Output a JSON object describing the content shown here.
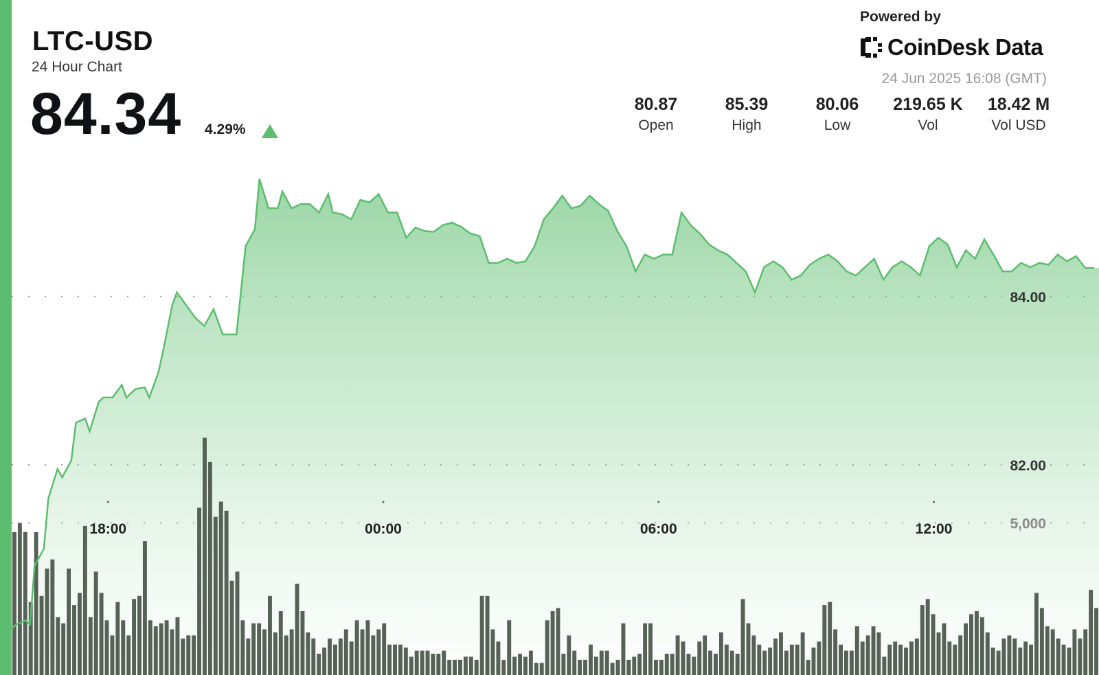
{
  "header": {
    "symbol": "LTC-USD",
    "subtitle": "24 Hour Chart",
    "price": "84.34",
    "change_pct": "4.29%",
    "change_direction": "up"
  },
  "branding": {
    "powered_by": "Powered by",
    "name": "CoinDesk Data",
    "timestamp": "24 Jun 2025 16:08 (GMT)"
  },
  "stats": [
    {
      "value": "80.87",
      "label": "Open"
    },
    {
      "value": "85.39",
      "label": "High"
    },
    {
      "value": "80.06",
      "label": "Low"
    },
    {
      "value": "219.65 K",
      "label": "Vol"
    },
    {
      "value": "18.42 M",
      "label": "Vol USD"
    }
  ],
  "colors": {
    "accent": "#5cbd6e",
    "line": "#5cbd6e",
    "volume_bar": "#4e5a4e",
    "up_arrow": "#5cbd6e"
  },
  "chart_data": {
    "type": "area",
    "title": "",
    "y_ticks": [
      84.0,
      82.0
    ],
    "y_tick_labels": [
      "84.00",
      "82.00"
    ],
    "x_tick_labels": [
      "18:00",
      "00:00",
      "06:00",
      "12:00"
    ],
    "x_tick_hours": [
      18,
      24,
      30,
      36
    ],
    "x_range_hours": [
      15.9,
      39.6
    ],
    "price_range": [
      79.5,
      86.0
    ],
    "price_series": [
      [
        15.9,
        80.05
      ],
      [
        16.0,
        80.1
      ],
      [
        16.2,
        80.15
      ],
      [
        16.3,
        80.1
      ],
      [
        16.4,
        80.8
      ],
      [
        16.6,
        81.0
      ],
      [
        16.7,
        81.6
      ],
      [
        16.9,
        81.95
      ],
      [
        17.0,
        81.85
      ],
      [
        17.2,
        82.05
      ],
      [
        17.3,
        82.5
      ],
      [
        17.5,
        82.55
      ],
      [
        17.6,
        82.4
      ],
      [
        17.8,
        82.75
      ],
      [
        17.9,
        82.8
      ],
      [
        18.1,
        82.8
      ],
      [
        18.3,
        82.95
      ],
      [
        18.4,
        82.8
      ],
      [
        18.6,
        82.9
      ],
      [
        18.8,
        82.92
      ],
      [
        18.9,
        82.8
      ],
      [
        19.1,
        83.1
      ],
      [
        19.2,
        83.35
      ],
      [
        19.4,
        83.9
      ],
      [
        19.5,
        84.05
      ],
      [
        19.7,
        83.9
      ],
      [
        19.9,
        83.75
      ],
      [
        20.1,
        83.65
      ],
      [
        20.3,
        83.85
      ],
      [
        20.5,
        83.55
      ],
      [
        20.7,
        83.55
      ],
      [
        20.8,
        83.55
      ],
      [
        21.0,
        84.6
      ],
      [
        21.2,
        84.8
      ],
      [
        21.3,
        85.4
      ],
      [
        21.5,
        85.05
      ],
      [
        21.7,
        85.05
      ],
      [
        21.8,
        85.25
      ],
      [
        22.0,
        85.05
      ],
      [
        22.2,
        85.1
      ],
      [
        22.4,
        85.1
      ],
      [
        22.6,
        85.0
      ],
      [
        22.8,
        85.22
      ],
      [
        22.9,
        85.0
      ],
      [
        23.1,
        84.98
      ],
      [
        23.3,
        84.92
      ],
      [
        23.5,
        85.15
      ],
      [
        23.7,
        85.12
      ],
      [
        23.9,
        85.22
      ],
      [
        24.1,
        85.0
      ],
      [
        24.3,
        85.0
      ],
      [
        24.5,
        84.7
      ],
      [
        24.7,
        84.82
      ],
      [
        24.9,
        84.78
      ],
      [
        25.1,
        84.77
      ],
      [
        25.3,
        84.85
      ],
      [
        25.5,
        84.88
      ],
      [
        25.7,
        84.83
      ],
      [
        25.9,
        84.75
      ],
      [
        26.1,
        84.72
      ],
      [
        26.3,
        84.4
      ],
      [
        26.5,
        84.4
      ],
      [
        26.7,
        84.45
      ],
      [
        26.9,
        84.4
      ],
      [
        27.1,
        84.42
      ],
      [
        27.3,
        84.6
      ],
      [
        27.5,
        84.92
      ],
      [
        27.7,
        85.05
      ],
      [
        27.9,
        85.2
      ],
      [
        28.1,
        85.05
      ],
      [
        28.3,
        85.08
      ],
      [
        28.5,
        85.2
      ],
      [
        28.7,
        85.1
      ],
      [
        28.9,
        85.02
      ],
      [
        29.1,
        84.78
      ],
      [
        29.3,
        84.6
      ],
      [
        29.5,
        84.3
      ],
      [
        29.7,
        84.5
      ],
      [
        29.9,
        84.45
      ],
      [
        30.1,
        84.5
      ],
      [
        30.3,
        84.5
      ],
      [
        30.5,
        85.0
      ],
      [
        30.7,
        84.85
      ],
      [
        30.9,
        84.75
      ],
      [
        31.1,
        84.62
      ],
      [
        31.3,
        84.55
      ],
      [
        31.5,
        84.5
      ],
      [
        31.7,
        84.4
      ],
      [
        31.9,
        84.3
      ],
      [
        32.1,
        84.05
      ],
      [
        32.3,
        84.35
      ],
      [
        32.5,
        84.42
      ],
      [
        32.7,
        84.35
      ],
      [
        32.9,
        84.2
      ],
      [
        33.1,
        84.25
      ],
      [
        33.3,
        84.38
      ],
      [
        33.5,
        84.45
      ],
      [
        33.7,
        84.5
      ],
      [
        33.9,
        84.42
      ],
      [
        34.1,
        84.3
      ],
      [
        34.3,
        84.25
      ],
      [
        34.5,
        84.35
      ],
      [
        34.7,
        84.45
      ],
      [
        34.9,
        84.2
      ],
      [
        35.1,
        84.35
      ],
      [
        35.3,
        84.42
      ],
      [
        35.5,
        84.35
      ],
      [
        35.7,
        84.25
      ],
      [
        35.9,
        84.6
      ],
      [
        36.1,
        84.7
      ],
      [
        36.3,
        84.62
      ],
      [
        36.5,
        84.35
      ],
      [
        36.7,
        84.55
      ],
      [
        36.9,
        84.45
      ],
      [
        37.1,
        84.68
      ],
      [
        37.3,
        84.5
      ],
      [
        37.5,
        84.3
      ],
      [
        37.7,
        84.3
      ],
      [
        37.9,
        84.4
      ],
      [
        38.1,
        84.35
      ],
      [
        38.3,
        84.4
      ],
      [
        38.5,
        84.38
      ],
      [
        38.7,
        84.5
      ],
      [
        38.9,
        84.42
      ],
      [
        39.1,
        84.48
      ],
      [
        39.3,
        84.34
      ],
      [
        39.5,
        84.34
      ]
    ],
    "volume_tick_label": "5,000",
    "volume_tick_value": 5000,
    "volume_range": [
      0,
      10000
    ],
    "volume_bars": [
      4700,
      5000,
      4700,
      2400,
      4700,
      2600,
      3500,
      3800,
      1900,
      1700,
      3500,
      2300,
      2700,
      4900,
      1900,
      3400,
      2700,
      1800,
      1300,
      2400,
      1800,
      1300,
      2500,
      2600,
      4400,
      1800,
      1600,
      1700,
      1800,
      1500,
      1900,
      1200,
      1300,
      1300,
      5500,
      7800,
      7000,
      5200,
      5700,
      5400,
      3100,
      3400,
      1800,
      1200,
      1700,
      1700,
      1500,
      2600,
      1400,
      2100,
      1300,
      1500,
      3000,
      2100,
      1400,
      1200,
      700,
      900,
      1200,
      1000,
      1200,
      1500,
      1100,
      1800,
      1500,
      1800,
      1300,
      1500,
      1700,
      1000,
      1000,
      1000,
      900,
      600,
      800,
      800,
      800,
      700,
      700,
      800,
      500,
      500,
      500,
      600,
      600,
      500,
      2600,
      2600,
      1500,
      1100,
      500,
      1800,
      600,
      700,
      600,
      800,
      400,
      400,
      1800,
      2100,
      2200,
      700,
      1300,
      800,
      500,
      500,
      1000,
      600,
      800,
      800,
      400,
      500,
      1700,
      500,
      600,
      700,
      1700,
      1700,
      500,
      500,
      700,
      700,
      1300,
      1100,
      700,
      600,
      1100,
      1300,
      800,
      700,
      1400,
      1000,
      800,
      700,
      2500,
      1700,
      1300,
      1000,
      800,
      900,
      1200,
      1400,
      800,
      1000,
      1000,
      1400,
      500,
      900,
      1100,
      2300,
      2400,
      1500,
      1000,
      800,
      800,
      1600,
      1100,
      1300,
      1600,
      1400,
      600,
      1000,
      1100,
      1000,
      900,
      1100,
      1200,
      2300,
      2500,
      2000,
      1400,
      1700,
      1100,
      1000,
      1300,
      1700,
      2000,
      2100,
      1900,
      1400,
      900,
      800,
      1200,
      1300,
      1200,
      900,
      1100,
      1000,
      2700,
      2200,
      1600,
      1500,
      1200,
      1000,
      900,
      1500,
      1200,
      1500,
      2800,
      2200
    ]
  }
}
